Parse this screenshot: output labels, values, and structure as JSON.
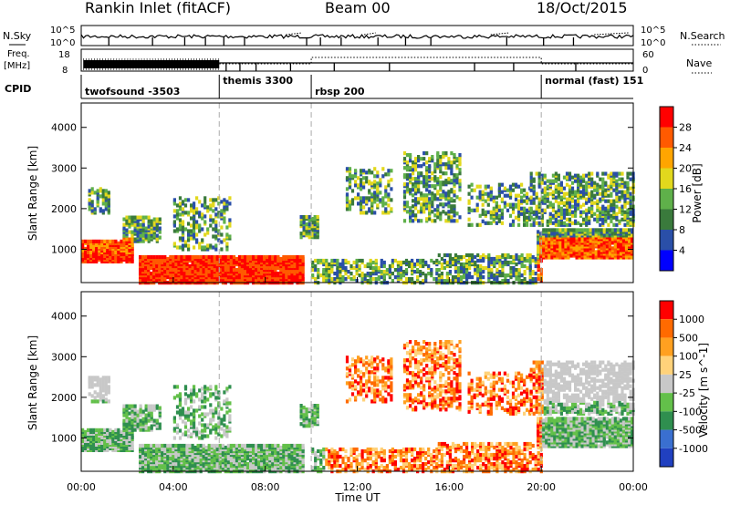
{
  "header": {
    "site": "Rankin Inlet (fitACF)",
    "beam": "Beam 00",
    "date": "18/Oct/2015"
  },
  "noise_panel": {
    "left_label": "N.Sky",
    "right_label": "N.Search",
    "left_ticks": [
      "10^5",
      "10^0"
    ],
    "right_ticks": [
      "10^5",
      "10^0"
    ]
  },
  "freq_panel": {
    "left_label_1": "Freq.",
    "left_label_2": "[MHz]",
    "left_ticks": [
      "18",
      "8"
    ],
    "right_label": "Nave",
    "right_ticks": [
      "60",
      "0"
    ]
  },
  "cpid": {
    "label": "CPID",
    "segments": [
      {
        "name": "twofsound -3503",
        "start_h": 0,
        "end_h": 6
      },
      {
        "name": "themis 3300",
        "start_h": 6,
        "end_h": 10
      },
      {
        "name": "rbsp 200",
        "start_h": 10,
        "end_h": 20
      },
      {
        "name": "normal (fast) 151",
        "start_h": 20,
        "end_h": 24
      }
    ]
  },
  "chart_data": [
    {
      "type": "heatmap",
      "name": "power",
      "ylabel": "Slant Range [km]",
      "xlim": [
        0,
        24
      ],
      "ylim": [
        180,
        4600
      ],
      "yticks": [
        "1000",
        "2000",
        "3000",
        "4000"
      ],
      "colorbar_label": "Power [dB]",
      "colorbar_ticks": [
        "28",
        "24",
        "20",
        "16",
        "12",
        "8",
        "4"
      ],
      "colors": [
        "#0000ff",
        "#2a4fa8",
        "#3a7a3c",
        "#5fb04a",
        "#e2d81d",
        "#ffa500",
        "#ff5a00",
        "#ff0000"
      ]
    },
    {
      "type": "heatmap",
      "name": "velocity",
      "ylabel": "Slant Range [km]",
      "xlabel": "Time UT",
      "xlim": [
        0,
        24
      ],
      "ylim": [
        180,
        4600
      ],
      "xticks": [
        "00:00",
        "04:00",
        "08:00",
        "12:00",
        "16:00",
        "20:00",
        "00:00"
      ],
      "yticks": [
        "1000",
        "2000",
        "3000",
        "4000"
      ],
      "colorbar_label": "Velocity [m s^-1]",
      "colorbar_ticks": [
        "1000",
        "500",
        "100",
        "25",
        "-25",
        "-100",
        "-500",
        "-1000"
      ],
      "colors": [
        "#2040c0",
        "#3a6fd0",
        "#2f8f4f",
        "#63c04a",
        "#c8c8c8",
        "#ffd27a",
        "#ffa020",
        "#ff6a00",
        "#ff0000"
      ]
    }
  ]
}
